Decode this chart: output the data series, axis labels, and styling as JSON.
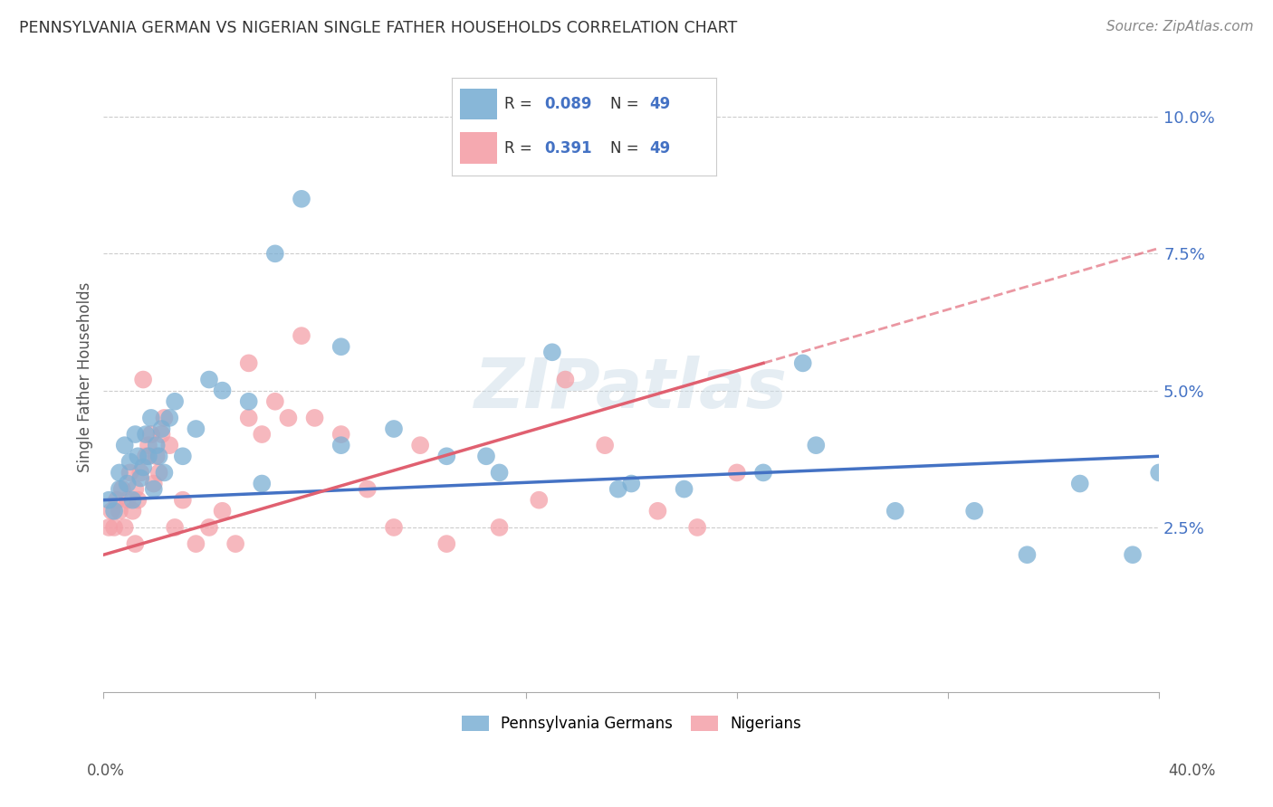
{
  "title": "PENNSYLVANIA GERMAN VS NIGERIAN SINGLE FATHER HOUSEHOLDS CORRELATION CHART",
  "source": "Source: ZipAtlas.com",
  "ylabel": "Single Father Households",
  "ytick_labels": [
    "2.5%",
    "5.0%",
    "7.5%",
    "10.0%"
  ],
  "ytick_values": [
    0.025,
    0.05,
    0.075,
    0.1
  ],
  "xlim": [
    0.0,
    0.4
  ],
  "ylim": [
    -0.005,
    0.11
  ],
  "blue_color": "#7BAFD4",
  "pink_color": "#F4A0A8",
  "line_blue": "#4472C4",
  "line_pink": "#E06070",
  "background_color": "#FFFFFF",
  "watermark": "ZIPatlas",
  "blue_scatter_x": [
    0.002,
    0.004,
    0.006,
    0.006,
    0.008,
    0.009,
    0.01,
    0.011,
    0.012,
    0.013,
    0.014,
    0.015,
    0.016,
    0.017,
    0.018,
    0.019,
    0.02,
    0.021,
    0.022,
    0.023,
    0.025,
    0.027,
    0.03,
    0.035,
    0.04,
    0.045,
    0.055,
    0.065,
    0.075,
    0.09,
    0.11,
    0.13,
    0.15,
    0.17,
    0.2,
    0.22,
    0.25,
    0.27,
    0.3,
    0.33,
    0.35,
    0.37,
    0.39,
    0.4,
    0.265,
    0.195,
    0.145,
    0.09,
    0.06
  ],
  "blue_scatter_y": [
    0.03,
    0.028,
    0.032,
    0.035,
    0.04,
    0.033,
    0.037,
    0.03,
    0.042,
    0.038,
    0.034,
    0.036,
    0.042,
    0.038,
    0.045,
    0.032,
    0.04,
    0.038,
    0.043,
    0.035,
    0.045,
    0.048,
    0.038,
    0.043,
    0.052,
    0.05,
    0.048,
    0.075,
    0.085,
    0.04,
    0.043,
    0.038,
    0.035,
    0.057,
    0.033,
    0.032,
    0.035,
    0.04,
    0.028,
    0.028,
    0.02,
    0.033,
    0.02,
    0.035,
    0.055,
    0.032,
    0.038,
    0.058,
    0.033
  ],
  "pink_scatter_x": [
    0.002,
    0.003,
    0.004,
    0.005,
    0.006,
    0.007,
    0.008,
    0.009,
    0.01,
    0.011,
    0.012,
    0.012,
    0.013,
    0.014,
    0.015,
    0.016,
    0.017,
    0.018,
    0.019,
    0.02,
    0.021,
    0.022,
    0.023,
    0.025,
    0.027,
    0.03,
    0.035,
    0.04,
    0.045,
    0.05,
    0.055,
    0.06,
    0.065,
    0.07,
    0.08,
    0.09,
    0.1,
    0.11,
    0.13,
    0.15,
    0.165,
    0.175,
    0.19,
    0.21,
    0.225,
    0.24,
    0.055,
    0.075,
    0.12
  ],
  "pink_scatter_y": [
    0.025,
    0.028,
    0.025,
    0.03,
    0.028,
    0.032,
    0.025,
    0.03,
    0.035,
    0.028,
    0.032,
    0.022,
    0.03,
    0.035,
    0.052,
    0.038,
    0.04,
    0.042,
    0.033,
    0.038,
    0.035,
    0.042,
    0.045,
    0.04,
    0.025,
    0.03,
    0.022,
    0.025,
    0.028,
    0.022,
    0.045,
    0.042,
    0.048,
    0.045,
    0.045,
    0.042,
    0.032,
    0.025,
    0.022,
    0.025,
    0.03,
    0.052,
    0.04,
    0.028,
    0.025,
    0.035,
    0.055,
    0.06,
    0.04
  ]
}
